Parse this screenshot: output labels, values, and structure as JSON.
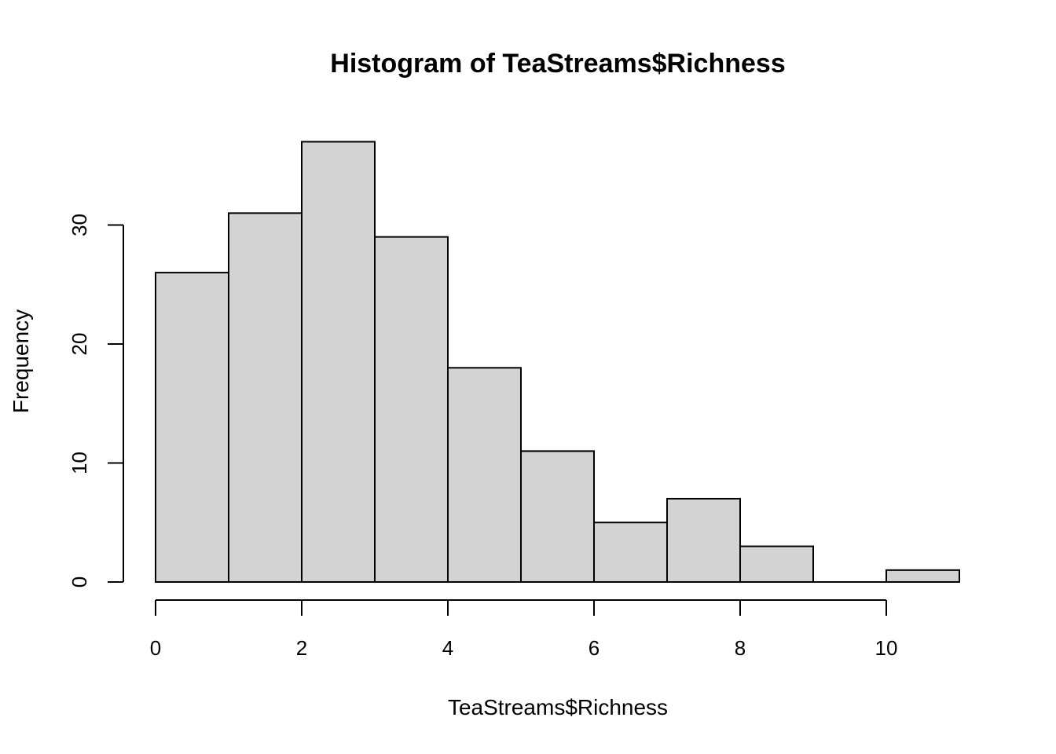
{
  "chart_data": {
    "type": "bar",
    "title": "Histogram of TeaStreams$Richness",
    "xlabel": "TeaStreams$Richness",
    "ylabel": "Frequency",
    "bins": [
      {
        "from": 0,
        "to": 1,
        "count": 26
      },
      {
        "from": 1,
        "to": 2,
        "count": 31
      },
      {
        "from": 2,
        "to": 3,
        "count": 37
      },
      {
        "from": 3,
        "to": 4,
        "count": 29
      },
      {
        "from": 4,
        "to": 5,
        "count": 18
      },
      {
        "from": 5,
        "to": 6,
        "count": 11
      },
      {
        "from": 6,
        "to": 7,
        "count": 5
      },
      {
        "from": 7,
        "to": 8,
        "count": 7
      },
      {
        "from": 8,
        "to": 9,
        "count": 3
      },
      {
        "from": 9,
        "to": 10,
        "count": 0
      },
      {
        "from": 10,
        "to": 11,
        "count": 1
      }
    ],
    "xlim": [
      0,
      11
    ],
    "ylim": [
      0,
      37
    ],
    "xticks": [
      0,
      2,
      4,
      6,
      8,
      10
    ],
    "yticks": [
      0,
      10,
      20,
      30
    ],
    "grid": false
  }
}
